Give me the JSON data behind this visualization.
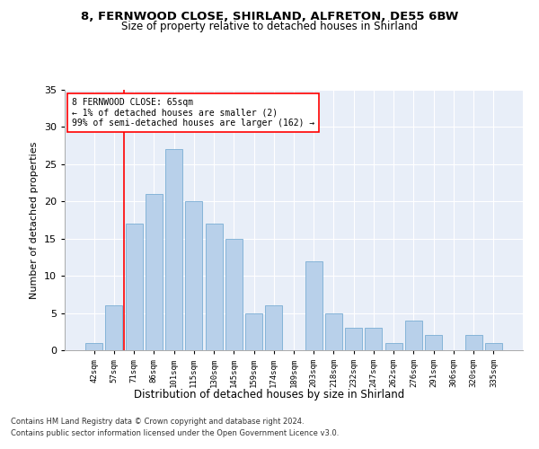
{
  "title_line1": "8, FERNWOOD CLOSE, SHIRLAND, ALFRETON, DE55 6BW",
  "title_line2": "Size of property relative to detached houses in Shirland",
  "xlabel": "Distribution of detached houses by size in Shirland",
  "ylabel": "Number of detached properties",
  "bar_color": "#b8d0ea",
  "bar_edge_color": "#7aadd4",
  "categories": [
    "42sqm",
    "57sqm",
    "71sqm",
    "86sqm",
    "101sqm",
    "115sqm",
    "130sqm",
    "145sqm",
    "159sqm",
    "174sqm",
    "189sqm",
    "203sqm",
    "218sqm",
    "232sqm",
    "247sqm",
    "262sqm",
    "276sqm",
    "291sqm",
    "306sqm",
    "320sqm",
    "335sqm"
  ],
  "values": [
    1,
    6,
    17,
    21,
    27,
    20,
    17,
    15,
    5,
    6,
    0,
    12,
    5,
    3,
    3,
    1,
    4,
    2,
    0,
    2,
    1
  ],
  "ylim": [
    0,
    35
  ],
  "yticks": [
    0,
    5,
    10,
    15,
    20,
    25,
    30,
    35
  ],
  "annotation_text": "8 FERNWOOD CLOSE: 65sqm\n← 1% of detached houses are smaller (2)\n99% of semi-detached houses are larger (162) →",
  "red_line_x": 1.5,
  "background_color": "#e8eef8",
  "grid_color": "#ffffff",
  "footer_line1": "Contains HM Land Registry data © Crown copyright and database right 2024.",
  "footer_line2": "Contains public sector information licensed under the Open Government Licence v3.0."
}
